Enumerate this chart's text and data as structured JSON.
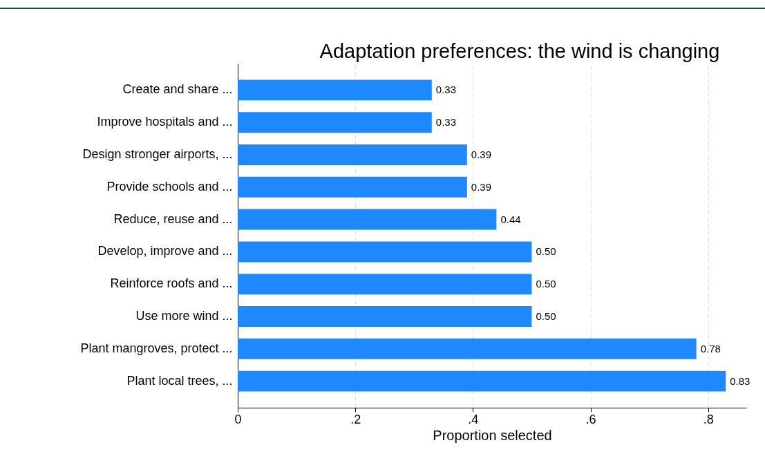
{
  "chart_data": {
    "type": "bar",
    "orientation": "horizontal",
    "title": "Adaptation preferences: the wind is changing",
    "xlabel": "Proportion selected",
    "categories": [
      "Create and share ...",
      "Improve hospitals and ...",
      "Design stronger airports, ...",
      "Provide schools and ...",
      "Reduce, reuse and ...",
      "Develop, improve and ...",
      "Reinforce roofs and ...",
      "Use more wind ...",
      "Plant mangroves, protect ...",
      "Plant local trees, ..."
    ],
    "values": [
      0.33,
      0.33,
      0.39,
      0.39,
      0.44,
      0.5,
      0.5,
      0.5,
      0.78,
      0.83
    ],
    "value_labels": [
      "0.33",
      "0.33",
      "0.39",
      "0.39",
      "0.44",
      "0.50",
      "0.50",
      "0.50",
      "0.78",
      "0.83"
    ],
    "color": "#1e88ff",
    "xlim": [
      0,
      0.865
    ],
    "xticks": [
      {
        "value": 0,
        "label": "0"
      },
      {
        "value": 0.2,
        "label": ".2"
      },
      {
        "value": 0.4,
        "label": ".4"
      },
      {
        "value": 0.6,
        "label": ".6"
      },
      {
        "value": 0.8,
        "label": ".8"
      }
    ],
    "grid": "x"
  }
}
